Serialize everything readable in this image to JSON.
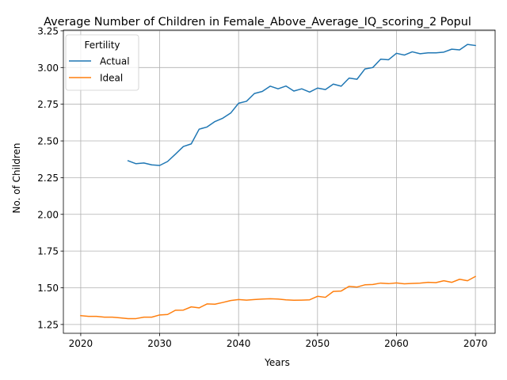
{
  "chart_data": {
    "type": "line",
    "title": "Average Number of Children in Female_Above_Average_IQ_scoring_2 Popul",
    "xlabel": "Years",
    "ylabel": "No. of Children",
    "xlim": [
      2017.8,
      2072.5
    ],
    "ylim": [
      1.19,
      3.255
    ],
    "x_ticks": [
      2020,
      2030,
      2040,
      2050,
      2060,
      2070
    ],
    "y_ticks": [
      1.25,
      1.5,
      1.75,
      2.0,
      2.25,
      2.5,
      2.75,
      3.0,
      3.25
    ],
    "x_tick_labels": [
      "2020",
      "2030",
      "2040",
      "2050",
      "2060",
      "2070"
    ],
    "y_tick_labels": [
      "1.25",
      "1.50",
      "1.75",
      "2.00",
      "2.25",
      "2.50",
      "2.75",
      "3.00",
      "3.25"
    ],
    "grid": true,
    "legend": {
      "title": "Fertility",
      "position": "upper-left"
    },
    "series": [
      {
        "name": "Actual",
        "color": "#1f77b4",
        "x": [
          2026,
          2027,
          2028,
          2029,
          2030,
          2031,
          2032,
          2033,
          2034,
          2035,
          2036,
          2037,
          2038,
          2039,
          2040,
          2041,
          2042,
          2043,
          2044,
          2045,
          2046,
          2047,
          2048,
          2049,
          2050,
          2051,
          2052,
          2053,
          2054,
          2055,
          2056,
          2057,
          2058,
          2059,
          2060,
          2061,
          2062,
          2063,
          2064,
          2065,
          2066,
          2067,
          2068,
          2069,
          2070
        ],
        "values": [
          2.365,
          2.345,
          2.35,
          2.337,
          2.333,
          2.36,
          2.41,
          2.462,
          2.48,
          2.58,
          2.595,
          2.632,
          2.655,
          2.69,
          2.757,
          2.77,
          2.823,
          2.837,
          2.873,
          2.855,
          2.874,
          2.84,
          2.855,
          2.833,
          2.86,
          2.85,
          2.887,
          2.873,
          2.928,
          2.92,
          2.99,
          3.0,
          3.057,
          3.053,
          3.097,
          3.085,
          3.107,
          3.094,
          3.1,
          3.1,
          3.105,
          3.125,
          3.12,
          3.157,
          3.15
        ]
      },
      {
        "name": "Ideal",
        "color": "#ff7f0e",
        "x": [
          2020,
          2021,
          2022,
          2023,
          2024,
          2025,
          2026,
          2027,
          2028,
          2029,
          2030,
          2031,
          2032,
          2033,
          2034,
          2035,
          2036,
          2037,
          2038,
          2039,
          2040,
          2041,
          2042,
          2043,
          2044,
          2045,
          2046,
          2047,
          2048,
          2049,
          2050,
          2051,
          2052,
          2053,
          2054,
          2055,
          2056,
          2057,
          2058,
          2059,
          2060,
          2061,
          2062,
          2063,
          2064,
          2065,
          2066,
          2067,
          2068,
          2069,
          2070
        ],
        "values": [
          1.31,
          1.305,
          1.305,
          1.3,
          1.3,
          1.295,
          1.29,
          1.29,
          1.3,
          1.3,
          1.315,
          1.318,
          1.347,
          1.348,
          1.37,
          1.363,
          1.39,
          1.388,
          1.4,
          1.413,
          1.42,
          1.416,
          1.42,
          1.423,
          1.425,
          1.423,
          1.418,
          1.415,
          1.416,
          1.418,
          1.442,
          1.435,
          1.475,
          1.478,
          1.51,
          1.505,
          1.52,
          1.522,
          1.532,
          1.528,
          1.533,
          1.527,
          1.53,
          1.532,
          1.537,
          1.535,
          1.548,
          1.537,
          1.558,
          1.548,
          1.577
        ]
      }
    ]
  }
}
